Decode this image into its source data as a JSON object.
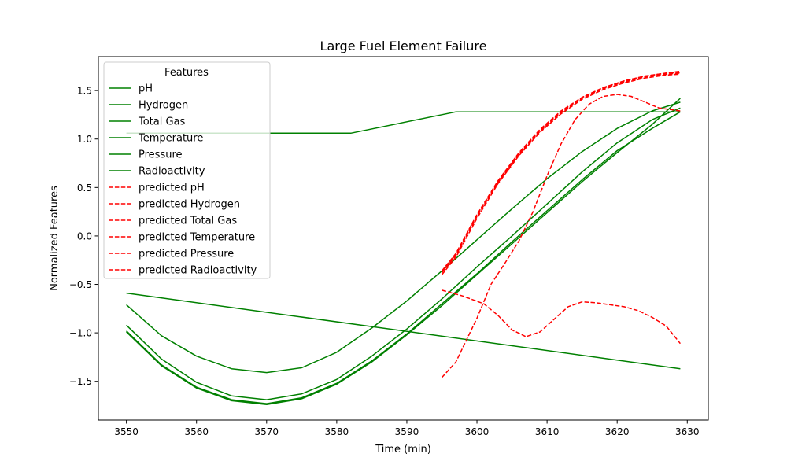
{
  "chart_data": {
    "type": "line",
    "title": "Large Fuel Element Failure",
    "xlabel": "Time (min)",
    "ylabel": "Normalized Features",
    "xlim": [
      3546,
      3633
    ],
    "ylim": [
      -1.9,
      1.85
    ],
    "xticks": [
      3550,
      3560,
      3570,
      3580,
      3590,
      3600,
      3610,
      3620,
      3630
    ],
    "xtick_labels": [
      "3550",
      "3560",
      "3570",
      "3580",
      "3590",
      "3600",
      "3610",
      "3620",
      "3630"
    ],
    "yticks": [
      -1.5,
      -1.0,
      -0.5,
      0.0,
      0.5,
      1.0,
      1.5
    ],
    "ytick_labels": [
      "−1.5",
      "−1.0",
      "−0.5",
      "0.0",
      "0.5",
      "1.0",
      "1.5"
    ],
    "grid": false,
    "legend": {
      "title": "Features",
      "placement": "top-left"
    },
    "series": [
      {
        "name": "pH",
        "color": "#008000",
        "style": "solid",
        "x": [
          3550,
          3555,
          3560,
          3565,
          3570,
          3575,
          3580,
          3585,
          3590,
          3595,
          3600,
          3605,
          3610,
          3615,
          3620,
          3625,
          3629
        ],
        "y": [
          -0.71,
          -1.03,
          -1.24,
          -1.37,
          -1.41,
          -1.36,
          -1.2,
          -0.95,
          -0.67,
          -0.36,
          -0.04,
          0.28,
          0.59,
          0.87,
          1.11,
          1.29,
          1.38
        ]
      },
      {
        "name": "Hydrogen",
        "color": "#008000",
        "style": "solid",
        "x": [
          3550,
          3555,
          3560,
          3565,
          3570,
          3575,
          3580,
          3585,
          3590,
          3595,
          3600,
          3605,
          3610,
          3615,
          3620,
          3625,
          3629
        ],
        "y": [
          -0.92,
          -1.27,
          -1.51,
          -1.65,
          -1.69,
          -1.63,
          -1.48,
          -1.24,
          -0.96,
          -0.65,
          -0.32,
          0.0,
          0.33,
          0.66,
          0.96,
          1.2,
          1.32
        ]
      },
      {
        "name": "Total Gas",
        "color": "#008000",
        "style": "solid",
        "x": [
          3550,
          3555,
          3560,
          3565,
          3570,
          3575,
          3580,
          3585,
          3590,
          3595,
          3600,
          3605,
          3610,
          3615,
          3620,
          3625,
          3629
        ],
        "y": [
          -0.98,
          -1.33,
          -1.56,
          -1.69,
          -1.73,
          -1.67,
          -1.52,
          -1.29,
          -1.01,
          -0.7,
          -0.39,
          -0.06,
          0.26,
          0.58,
          0.88,
          1.11,
          1.28
        ]
      },
      {
        "name": "Temperature",
        "color": "#008000",
        "style": "solid",
        "x": [
          3550,
          3582,
          3597,
          3629
        ],
        "y": [
          1.06,
          1.06,
          1.28,
          1.28
        ]
      },
      {
        "name": "Pressure",
        "color": "#008000",
        "style": "solid",
        "x": [
          3550,
          3629
        ],
        "y": [
          -0.59,
          -1.37
        ]
      },
      {
        "name": "Radioactivity",
        "color": "#008000",
        "style": "solid",
        "x": [
          3550,
          3555,
          3560,
          3565,
          3570,
          3575,
          3580,
          3585,
          3590,
          3595,
          3600,
          3605,
          3610,
          3615,
          3620,
          3625,
          3629
        ],
        "y": [
          -0.99,
          -1.34,
          -1.57,
          -1.7,
          -1.74,
          -1.68,
          -1.53,
          -1.3,
          -1.02,
          -0.72,
          -0.4,
          -0.08,
          0.24,
          0.56,
          0.86,
          1.15,
          1.42
        ]
      },
      {
        "name": "predicted pH",
        "color": "#ff0000",
        "style": "dashed",
        "x": [
          3595,
          3597,
          3600,
          3603,
          3606,
          3609,
          3612,
          3615,
          3618,
          3621,
          3624,
          3627,
          3629
        ],
        "y": [
          -0.38,
          -0.2,
          0.2,
          0.55,
          0.84,
          1.08,
          1.27,
          1.42,
          1.52,
          1.59,
          1.64,
          1.67,
          1.68
        ]
      },
      {
        "name": "predicted Hydrogen",
        "color": "#ff0000",
        "style": "dashed",
        "x": [
          3595,
          3597,
          3600,
          3603,
          3606,
          3609,
          3612,
          3615,
          3618,
          3621,
          3624,
          3627,
          3629
        ],
        "y": [
          -0.36,
          -0.18,
          0.22,
          0.57,
          0.86,
          1.1,
          1.29,
          1.43,
          1.53,
          1.6,
          1.65,
          1.68,
          1.69
        ]
      },
      {
        "name": "predicted Total Gas",
        "color": "#ff0000",
        "style": "dashed",
        "x": [
          3595,
          3597,
          3600,
          3603,
          3606,
          3609,
          3612,
          3615,
          3618,
          3621,
          3624,
          3627,
          3629
        ],
        "y": [
          -0.4,
          -0.22,
          0.18,
          0.54,
          0.83,
          1.07,
          1.26,
          1.41,
          1.51,
          1.58,
          1.63,
          1.66,
          1.67
        ]
      },
      {
        "name": "predicted Temperature",
        "color": "#ff0000",
        "style": "dashed",
        "x": [
          3595,
          3597,
          3600,
          3603,
          3606,
          3609,
          3612,
          3615,
          3618,
          3621,
          3624,
          3627,
          3629
        ],
        "y": [
          -0.37,
          -0.19,
          0.21,
          0.56,
          0.85,
          1.09,
          1.28,
          1.43,
          1.53,
          1.6,
          1.65,
          1.68,
          1.7
        ]
      },
      {
        "name": "predicted Pressure",
        "color": "#ff0000",
        "style": "dashed",
        "x": [
          3595,
          3597,
          3600,
          3602,
          3604,
          3606,
          3608,
          3610,
          3612,
          3614,
          3616,
          3618,
          3620,
          3622,
          3624,
          3626,
          3629
        ],
        "y": [
          -1.46,
          -1.3,
          -0.85,
          -0.5,
          -0.28,
          -0.05,
          0.25,
          0.62,
          0.95,
          1.2,
          1.36,
          1.44,
          1.46,
          1.44,
          1.38,
          1.32,
          1.29
        ]
      },
      {
        "name": "predicted Radioactivity",
        "color": "#ff0000",
        "style": "dashed",
        "x": [
          3595,
          3598,
          3601,
          3603,
          3605,
          3607,
          3609,
          3611,
          3613,
          3615,
          3617,
          3619,
          3621,
          3623,
          3625,
          3627,
          3629
        ],
        "y": [
          -0.56,
          -0.62,
          -0.7,
          -0.82,
          -0.97,
          -1.04,
          -0.99,
          -0.86,
          -0.73,
          -0.68,
          -0.69,
          -0.71,
          -0.73,
          -0.77,
          -0.84,
          -0.93,
          -1.11
        ]
      }
    ]
  }
}
